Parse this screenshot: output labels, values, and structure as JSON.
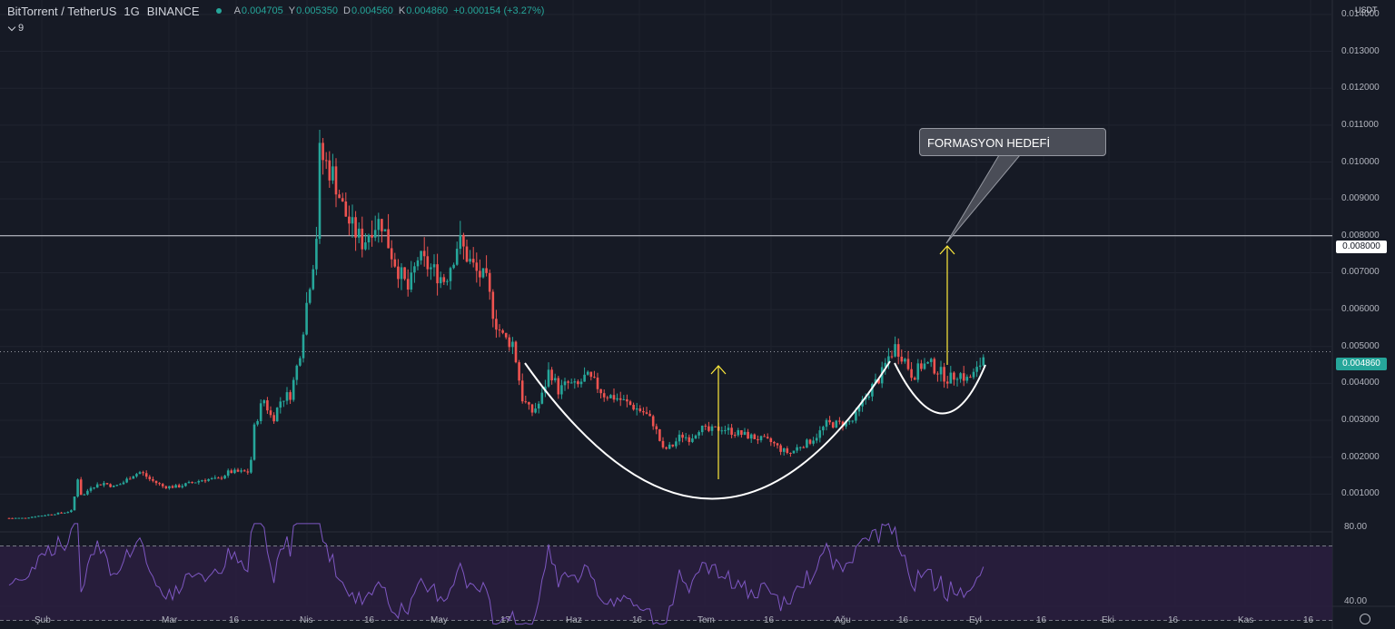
{
  "header": {
    "symbol": "BitTorrent / TetherUS",
    "interval": "1G",
    "exchange": "BINANCE",
    "open_label": "A",
    "open": "0.004705",
    "high_label": "Y",
    "high": "0.005350",
    "low_label": "D",
    "low": "0.004560",
    "close_label": "K",
    "close": "0.004860",
    "change": "+0.000154 (+3.27%)",
    "status_color": "#26a69a"
  },
  "indicator_toggle": {
    "icon": "chevron-down-icon",
    "count": "9"
  },
  "price_axis": {
    "currency": "USDT",
    "ticks": [
      "0.014000",
      "0.013000",
      "0.012000",
      "0.011000",
      "0.010000",
      "0.009000",
      "0.008000",
      "0.007000",
      "0.006000",
      "0.005000",
      "0.004000",
      "0.003000",
      "0.002000",
      "0.001000"
    ],
    "target_label": "0.008000",
    "last_price_label": "0.004860",
    "last_price_color": "#26a69a"
  },
  "rsi_axis": {
    "ticks": [
      "80.00",
      "40.00"
    ],
    "bands": [
      70,
      30
    ]
  },
  "time_axis": {
    "ticks": [
      "Şub",
      "Mar",
      "16",
      "Nis",
      "16",
      "May",
      "17",
      "Haz",
      "16",
      "Tem",
      "16",
      "Ağu",
      "16",
      "Eyl",
      "16",
      "Eki",
      "16",
      "Kas",
      "16"
    ]
  },
  "annotation": {
    "text": "FORMASYON HEDEFİ"
  },
  "colors": {
    "up": "#26a69a",
    "down": "#ef5350",
    "rsi": "#7e57c2",
    "arrow": "#ffeb3b",
    "pattern": "#ffffff"
  },
  "chart_data": {
    "type": "candlestick",
    "y_unit": "USDT",
    "ylim": [
      0,
      0.014
    ],
    "x_range": [
      "Şub",
      "Kas"
    ],
    "target_level": 0.008,
    "last_price": 0.00486,
    "series": [
      {
        "name": "BitTorrent / TetherUS",
        "close_path": [
          [
            0,
            0.00035
          ],
          [
            25,
            0.00035
          ],
          [
            40,
            0.0004
          ],
          [
            55,
            0.00045
          ],
          [
            70,
            0.0005
          ],
          [
            80,
            0.00055
          ],
          [
            85,
            0.0015
          ],
          [
            90,
            0.0009
          ],
          [
            100,
            0.0012
          ],
          [
            115,
            0.0013
          ],
          [
            125,
            0.0012
          ],
          [
            135,
            0.0013
          ],
          [
            145,
            0.0015
          ],
          [
            155,
            0.0016
          ],
          [
            165,
            0.0014
          ],
          [
            180,
            0.0012
          ],
          [
            195,
            0.0012
          ],
          [
            210,
            0.0013
          ],
          [
            225,
            0.0014
          ],
          [
            240,
            0.0014
          ],
          [
            252,
            0.0016
          ],
          [
            265,
            0.0016
          ],
          [
            275,
            0.0016
          ],
          [
            280,
            0.0028
          ],
          [
            290,
            0.0036
          ],
          [
            300,
            0.003
          ],
          [
            310,
            0.0036
          ],
          [
            320,
            0.0037
          ],
          [
            330,
            0.0048
          ],
          [
            340,
            0.0066
          ],
          [
            348,
            0.0078
          ],
          [
            352,
            0.0102
          ],
          [
            358,
            0.01
          ],
          [
            368,
            0.0096
          ],
          [
            378,
            0.0087
          ],
          [
            388,
            0.0082
          ],
          [
            400,
            0.0078
          ],
          [
            410,
            0.0083
          ],
          [
            420,
            0.0084
          ],
          [
            430,
            0.0076
          ],
          [
            440,
            0.007
          ],
          [
            450,
            0.0065
          ],
          [
            460,
            0.0074
          ],
          [
            470,
            0.0072
          ],
          [
            480,
            0.007
          ],
          [
            490,
            0.0068
          ],
          [
            500,
            0.0075
          ],
          [
            505,
            0.0079
          ],
          [
            515,
            0.0074
          ],
          [
            525,
            0.007
          ],
          [
            535,
            0.0068
          ],
          [
            545,
            0.0057
          ],
          [
            555,
            0.0052
          ],
          [
            565,
            0.0051
          ],
          [
            575,
            0.0036
          ],
          [
            585,
            0.0032
          ],
          [
            595,
            0.0035
          ],
          [
            605,
            0.0044
          ],
          [
            615,
            0.0038
          ],
          [
            625,
            0.004
          ],
          [
            635,
            0.0039
          ],
          [
            645,
            0.0042
          ],
          [
            655,
            0.004
          ],
          [
            665,
            0.0037
          ],
          [
            680,
            0.0036
          ],
          [
            695,
            0.0034
          ],
          [
            710,
            0.0032
          ],
          [
            720,
            0.0029
          ],
          [
            730,
            0.0022
          ],
          [
            740,
            0.0023
          ],
          [
            750,
            0.0026
          ],
          [
            760,
            0.0025
          ],
          [
            770,
            0.0028
          ],
          [
            780,
            0.0027
          ],
          [
            795,
            0.0028
          ],
          [
            805,
            0.0027
          ],
          [
            820,
            0.0026
          ],
          [
            835,
            0.0025
          ],
          [
            850,
            0.0024
          ],
          [
            860,
            0.0022
          ],
          [
            870,
            0.0021
          ],
          [
            880,
            0.0023
          ],
          [
            890,
            0.0024
          ],
          [
            900,
            0.0026
          ],
          [
            910,
            0.0029
          ],
          [
            925,
            0.0029
          ],
          [
            940,
            0.003
          ],
          [
            950,
            0.0035
          ],
          [
            960,
            0.0039
          ],
          [
            970,
            0.0042
          ],
          [
            978,
            0.0047
          ],
          [
            986,
            0.005
          ],
          [
            995,
            0.0047
          ],
          [
            1005,
            0.0042
          ],
          [
            1015,
            0.0045
          ],
          [
            1025,
            0.0045
          ],
          [
            1035,
            0.0043
          ],
          [
            1045,
            0.0041
          ],
          [
            1055,
            0.0043
          ],
          [
            1065,
            0.0041
          ],
          [
            1075,
            0.0043
          ],
          [
            1085,
            0.00486
          ]
        ]
      }
    ],
    "rsi": {
      "name": "RSI",
      "overbought": 70,
      "oversold": 30
    }
  }
}
